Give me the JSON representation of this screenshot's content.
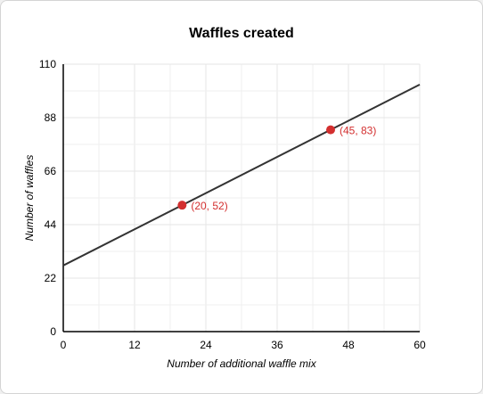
{
  "chart_data": {
    "type": "line",
    "title": "Waffles created",
    "xlabel": "Number of additional waffle mix",
    "ylabel": "Number of waffles",
    "xlim": [
      0,
      60
    ],
    "ylim": [
      0,
      110
    ],
    "xticks": [
      0,
      12,
      24,
      36,
      48,
      60
    ],
    "yticks": [
      0,
      22,
      44,
      66,
      88,
      110
    ],
    "grid": true,
    "line": {
      "x": [
        0,
        60
      ],
      "y": [
        27.2,
        101.6
      ],
      "color": "#333333"
    },
    "points": [
      {
        "x": 20,
        "y": 52,
        "label": "(20, 52)"
      },
      {
        "x": 45,
        "y": 83,
        "label": "(45, 83)"
      }
    ],
    "point_color": "#d32f2f"
  }
}
